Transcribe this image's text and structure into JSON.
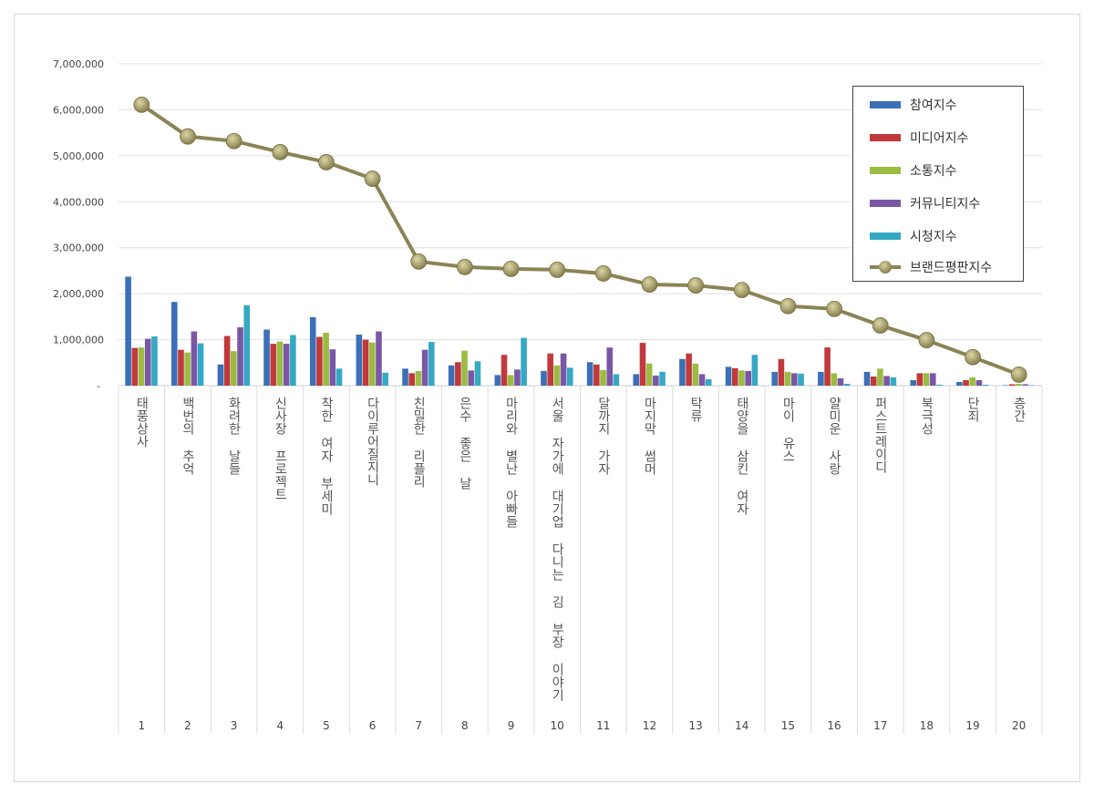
{
  "chart_data": {
    "type": "bar",
    "categories": [
      "태풍상사",
      "백번의 추억",
      "화려한 날들",
      "신사장 프로젝트",
      "착한 여자 부세미",
      "다이루어질지니",
      "친밀한 리플리",
      "은수 좋은 날",
      "마리와 별난 아빠들",
      "서울 자가에 대기업 다니는 김 부장 이야기",
      "달까지 가자",
      "마지막 썸머",
      "탁류",
      "태양을 삼킨 여자",
      "마이 유스",
      "얄미운 사랑",
      "퍼스트레이디",
      "북극성",
      "단죄",
      "층간"
    ],
    "ranks": [
      "1",
      "2",
      "3",
      "4",
      "5",
      "6",
      "7",
      "8",
      "9",
      "10",
      "11",
      "12",
      "13",
      "14",
      "15",
      "16",
      "17",
      "18",
      "19",
      "20"
    ],
    "ylim": [
      0,
      7000000
    ],
    "yticks": [
      0,
      1000000,
      2000000,
      3000000,
      4000000,
      5000000,
      6000000,
      7000000
    ],
    "ytick_labels": [
      "-",
      "1,000,000",
      "2,000,000",
      "3,000,000",
      "4,000,000",
      "5,000,000",
      "6,000,000",
      "7,000,000"
    ],
    "grid": "horizontal",
    "legend_position": "top-right",
    "series": [
      {
        "name": "참여지수",
        "kind": "bar",
        "color": "#3b6fb6",
        "values": [
          2370000,
          1820000,
          460000,
          1220000,
          1490000,
          1110000,
          370000,
          440000,
          230000,
          320000,
          510000,
          250000,
          580000,
          410000,
          300000,
          300000,
          300000,
          120000,
          80000,
          10000
        ]
      },
      {
        "name": "미디어지수",
        "kind": "bar",
        "color": "#c0393b",
        "values": [
          820000,
          780000,
          1080000,
          910000,
          1060000,
          1000000,
          270000,
          510000,
          670000,
          700000,
          460000,
          930000,
          700000,
          380000,
          580000,
          830000,
          200000,
          270000,
          120000,
          30000
        ]
      },
      {
        "name": "소통지수",
        "kind": "bar",
        "color": "#9bbb43",
        "values": [
          830000,
          720000,
          750000,
          960000,
          1150000,
          940000,
          320000,
          760000,
          230000,
          440000,
          340000,
          480000,
          480000,
          330000,
          300000,
          270000,
          370000,
          270000,
          180000,
          40000
        ]
      },
      {
        "name": "커뮤니티지수",
        "kind": "bar",
        "color": "#7a57a5",
        "values": [
          1020000,
          1180000,
          1270000,
          910000,
          790000,
          1180000,
          780000,
          330000,
          350000,
          700000,
          830000,
          220000,
          250000,
          320000,
          270000,
          160000,
          210000,
          270000,
          120000,
          30000
        ]
      },
      {
        "name": "시청지수",
        "kind": "bar",
        "color": "#35a9c4",
        "values": [
          1070000,
          920000,
          1750000,
          1100000,
          370000,
          280000,
          950000,
          530000,
          1040000,
          390000,
          250000,
          300000,
          140000,
          670000,
          260000,
          40000,
          180000,
          20000,
          20000,
          10000
        ]
      },
      {
        "name": "브랜드평판지수",
        "kind": "line",
        "color": "#8a8456",
        "values": [
          6110000,
          5420000,
          5320000,
          5080000,
          4860000,
          4500000,
          2700000,
          2580000,
          2540000,
          2520000,
          2440000,
          2200000,
          2180000,
          2080000,
          1730000,
          1670000,
          1310000,
          990000,
          620000,
          240000
        ]
      }
    ]
  }
}
